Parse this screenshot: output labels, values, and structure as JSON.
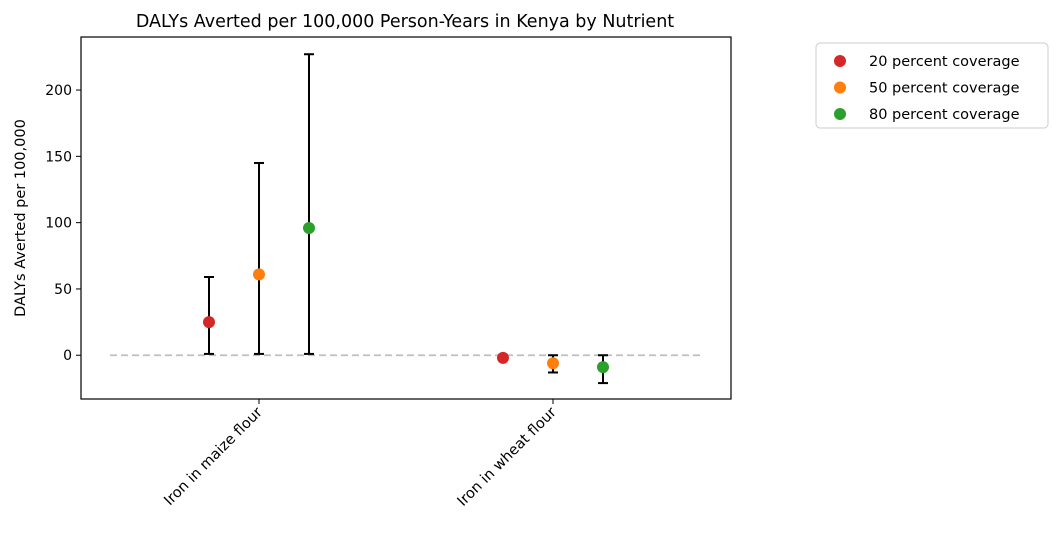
{
  "chart_data": {
    "type": "scatter",
    "title": "DALYs Averted per 100,000 Person-Years in Kenya by Nutrient",
    "xlabel": "",
    "ylabel": "DALYs Averted per 100,000",
    "categories": [
      "Iron in maize flour",
      "Iron in wheat flour"
    ],
    "ylim": [
      -33,
      240
    ],
    "yticks": [
      0,
      50,
      100,
      150,
      200
    ],
    "grid": false,
    "legend_position": "outside-right",
    "reference_line": {
      "y": 0,
      "color": "#bfbfbf",
      "style": "dashed"
    },
    "series": [
      {
        "name": "20 percent coverage",
        "color": "#d62728",
        "values": [
          25,
          -2
        ],
        "lower": [
          1,
          -3
        ],
        "upper": [
          59,
          0
        ]
      },
      {
        "name": "50 percent coverage",
        "color": "#ff7f0e",
        "values": [
          61,
          -6
        ],
        "lower": [
          1,
          -13
        ],
        "upper": [
          145,
          0
        ]
      },
      {
        "name": "80 percent coverage",
        "color": "#2ca02c",
        "values": [
          96,
          -9
        ],
        "lower": [
          1,
          -21
        ],
        "upper": [
          227,
          0
        ]
      }
    ]
  }
}
